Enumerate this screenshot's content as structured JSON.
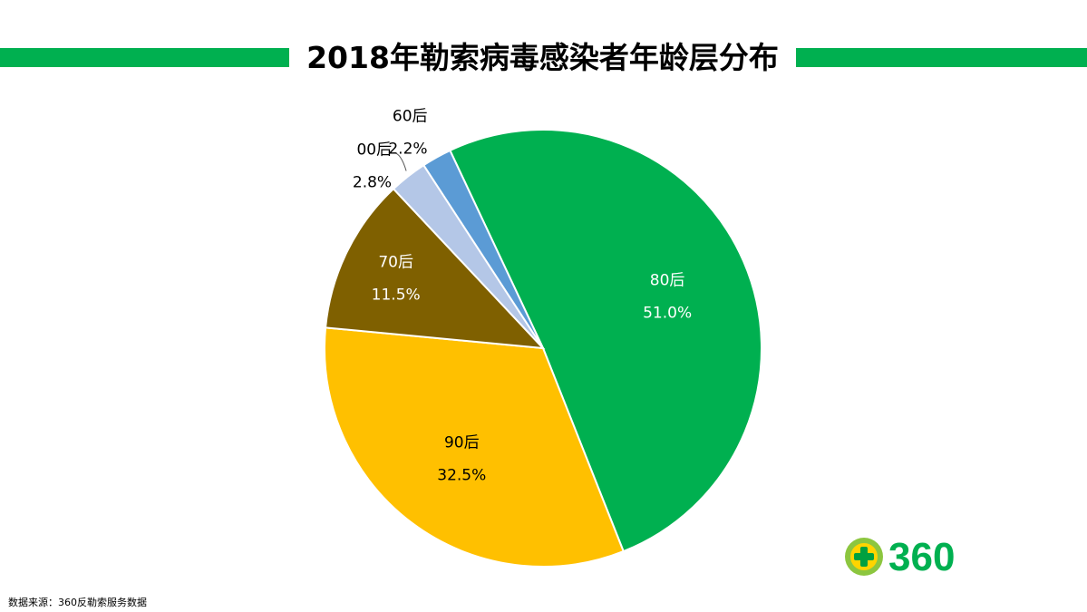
{
  "title": "2018年勒索病毒感染者年龄层分布",
  "source": "数据来源：360反勒索服务数据",
  "logo": {
    "text": "360",
    "icon": "plus-circle-icon",
    "color": "#00b050",
    "accent": "#ffcc00"
  },
  "chart_data": {
    "type": "pie",
    "title": "2018年勒索病毒感染者年龄层分布",
    "unit": "%",
    "slices": [
      {
        "label": "80后",
        "value": 51.0,
        "display": "51.0%",
        "color": "#00b050"
      },
      {
        "label": "90后",
        "value": 32.5,
        "display": "32.5%",
        "color": "#ffc000"
      },
      {
        "label": "70后",
        "value": 11.5,
        "display": "11.5%",
        "color": "#7f6000"
      },
      {
        "label": "00后",
        "value": 2.8,
        "display": "2.8%",
        "color": "#b4c7e7"
      },
      {
        "label": "60后",
        "value": 2.2,
        "display": "2.2%",
        "color": "#5b9bd5"
      }
    ]
  }
}
